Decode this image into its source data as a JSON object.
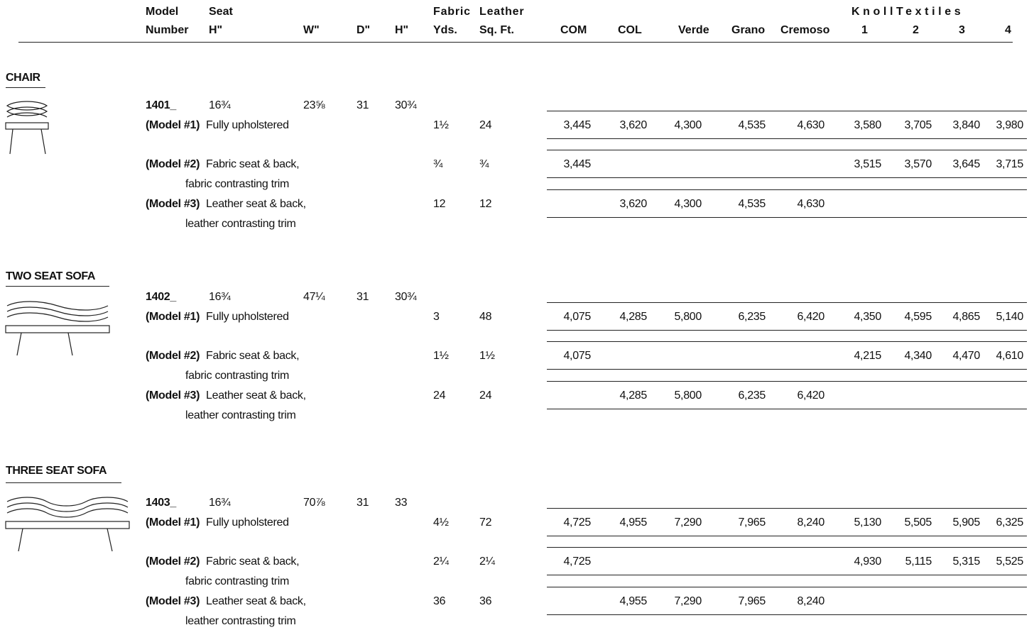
{
  "header": {
    "model_l1": "Model",
    "model_l2": "Number",
    "seat_l1": "Seat",
    "seat_l2": "H\"",
    "w": "W\"",
    "d": "D\"",
    "h": "H\"",
    "fabric_l1": "Fabric",
    "fabric_l2": "Yds.",
    "leather_l1": "Leather",
    "leather_l2": "Sq. Ft.",
    "com": "COM",
    "col": "COL",
    "verde": "Verde",
    "grano": "Grano",
    "cremoso": "Cremoso",
    "knoll": "KnollTextiles",
    "g1": "1",
    "g2": "2",
    "g3": "3",
    "g4": "4"
  },
  "sections": [
    {
      "title": "CHAIR",
      "model": "1401_",
      "seat_h": "16¾",
      "w": "23⅝",
      "d": "31",
      "h": "30¾",
      "rows": [
        {
          "tag": "(Model #1)",
          "desc": "Fully upholstered",
          "desc2": "",
          "yds": "1½",
          "sqft": "24",
          "prices": [
            "3,445",
            "3,620",
            "4,300",
            "4,535",
            "4,630",
            "3,580",
            "3,705",
            "3,840",
            "3,980"
          ]
        },
        {
          "tag": "(Model #2)",
          "desc": "Fabric seat & back,",
          "desc2": "fabric contrasting trim",
          "yds": "¾",
          "sqft": "¾",
          "prices": [
            "3,445",
            "",
            "",
            "",
            "",
            "3,515",
            "3,570",
            "3,645",
            "3,715"
          ]
        },
        {
          "tag": "(Model #3)",
          "desc": "Leather seat & back,",
          "desc2": "leather contrasting trim",
          "yds": "12",
          "sqft": "12",
          "prices": [
            "",
            "3,620",
            "4,300",
            "4,535",
            "4,630",
            "",
            "",
            "",
            ""
          ]
        }
      ]
    },
    {
      "title": "TWO SEAT SOFA",
      "model": "1402_",
      "seat_h": "16¾",
      "w": "47¼",
      "d": "31",
      "h": "30¾",
      "rows": [
        {
          "tag": "(Model #1)",
          "desc": "Fully upholstered",
          "desc2": "",
          "yds": "3",
          "sqft": "48",
          "prices": [
            "4,075",
            "4,285",
            "5,800",
            "6,235",
            "6,420",
            "4,350",
            "4,595",
            "4,865",
            "5,140"
          ]
        },
        {
          "tag": "(Model #2)",
          "desc": "Fabric seat & back,",
          "desc2": "fabric contrasting trim",
          "yds": "1½",
          "sqft": "1½",
          "prices": [
            "4,075",
            "",
            "",
            "",
            "",
            "4,215",
            "4,340",
            "4,470",
            "4,610"
          ]
        },
        {
          "tag": "(Model #3)",
          "desc": "Leather seat & back,",
          "desc2": "leather contrasting trim",
          "yds": "24",
          "sqft": "24",
          "prices": [
            "",
            "4,285",
            "5,800",
            "6,235",
            "6,420",
            "",
            "",
            "",
            ""
          ]
        }
      ]
    },
    {
      "title": "THREE SEAT SOFA",
      "model": "1403_",
      "seat_h": "16¾",
      "w": "70⅞",
      "d": "31",
      "h": "33",
      "rows": [
        {
          "tag": "(Model #1)",
          "desc": "Fully upholstered",
          "desc2": "",
          "yds": "4½",
          "sqft": "72",
          "prices": [
            "4,725",
            "4,955",
            "7,290",
            "7,965",
            "8,240",
            "5,130",
            "5,505",
            "5,905",
            "6,325"
          ]
        },
        {
          "tag": "(Model #2)",
          "desc": "Fabric seat & back,",
          "desc2": "fabric contrasting trim",
          "yds": "2¼",
          "sqft": "2¼",
          "prices": [
            "4,725",
            "",
            "",
            "",
            "",
            "4,930",
            "5,115",
            "5,315",
            "5,525"
          ]
        },
        {
          "tag": "(Model #3)",
          "desc": "Leather seat & back,",
          "desc2": "leather contrasting trim",
          "yds": "36",
          "sqft": "36",
          "prices": [
            "",
            "4,955",
            "7,290",
            "7,965",
            "8,240",
            "",
            "",
            "",
            ""
          ]
        }
      ]
    }
  ]
}
